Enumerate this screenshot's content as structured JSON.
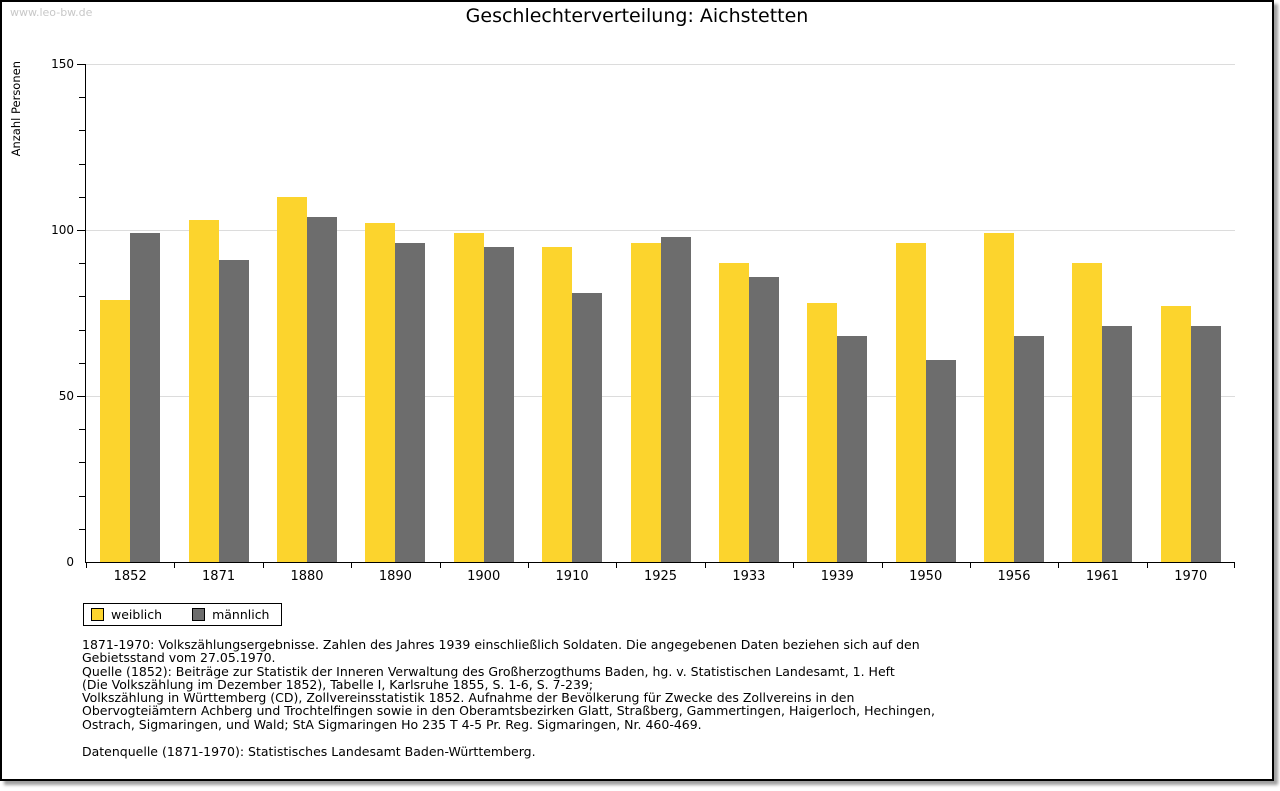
{
  "watermark": "www.leo-bw.de",
  "header": {
    "title": "Geschlechterverteilung: Aichstetten"
  },
  "chart_data": {
    "type": "bar",
    "title": "Geschlechterverteilung: Aichstetten",
    "xlabel": "",
    "ylabel": "Anzahl Personen",
    "categories": [
      "1852",
      "1871",
      "1880",
      "1890",
      "1900",
      "1910",
      "1925",
      "1933",
      "1939",
      "1950",
      "1956",
      "1961",
      "1970"
    ],
    "series": [
      {
        "name": "weiblich",
        "color": "#FCD42D",
        "values": [
          79,
          103,
          110,
          102,
          99,
          95,
          96,
          90,
          78,
          96,
          99,
          90,
          77
        ]
      },
      {
        "name": "männlich",
        "color": "#6D6D6D",
        "values": [
          99,
          91,
          104,
          96,
          95,
          81,
          98,
          86,
          68,
          61,
          68,
          71,
          71
        ]
      }
    ],
    "ylim": [
      0,
      150
    ],
    "y_major_ticks": [
      0,
      50,
      100,
      150
    ],
    "y_minor_tick_step": 10,
    "gridline_values": [
      50,
      100,
      150
    ],
    "grid": true,
    "legend_position": "bottom-left"
  },
  "legend": {
    "items": [
      {
        "label": "weiblich"
      },
      {
        "label": "männlich"
      }
    ]
  },
  "footnotes": {
    "lines": [
      "1871-1970: Volkszählungsergebnisse. Zahlen des Jahres 1939 einschließlich Soldaten. Die angegebenen Daten beziehen sich auf den",
      "Gebietsstand vom 27.05.1970.",
      "Quelle (1852): Beiträge zur Statistik der Inneren Verwaltung des Großherzogthums Baden, hg. v. Statistischen Landesamt, 1. Heft",
      "(Die Volkszählung im Dezember 1852), Tabelle I, Karlsruhe 1855, S. 1-6, S. 7-239;",
      "Volkszählung in Württemberg (CD), Zollvereinsstatistik 1852. Aufnahme der Bevölkerung für Zwecke des Zollvereins in den",
      "Obervogteiämtern Achberg und Trochtelfingen sowie in den Oberamtsbezirken Glatt, Straßberg, Gammertingen, Haigerloch, Hechingen,",
      "Ostrach, Sigmaringen, und Wald; StA Sigmaringen Ho 235 T 4-5 Pr. Reg. Sigmaringen, Nr. 460-469."
    ],
    "source": "Datenquelle (1871-1970): Statistisches Landesamt Baden-Württemberg."
  },
  "colors": {
    "bar_weiblich": "#FCD42D",
    "bar_maennlich": "#6D6D6D",
    "gridline": "#DCDCDC",
    "axis": "#000000",
    "watermark": "#C8C8C8"
  }
}
